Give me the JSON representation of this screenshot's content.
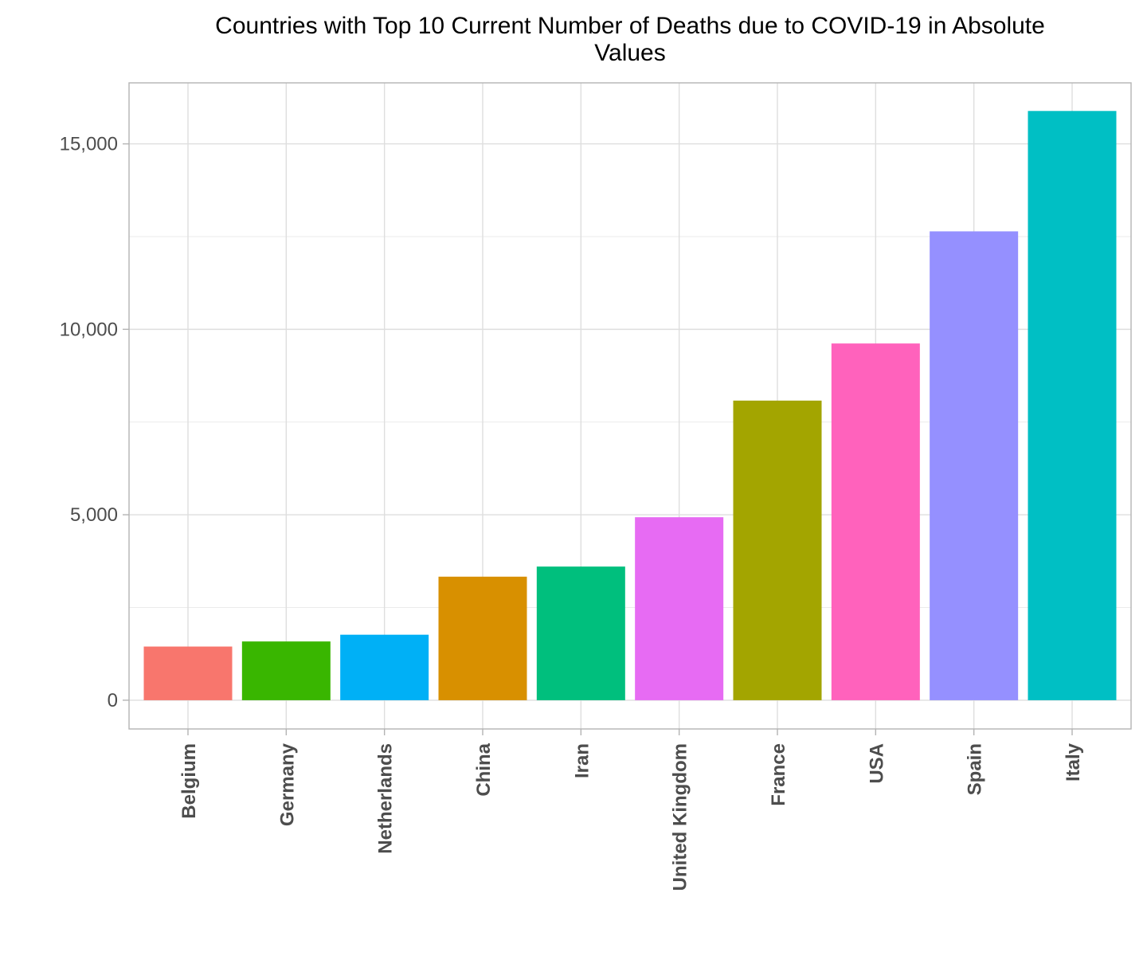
{
  "chart_data": {
    "type": "bar",
    "title_lines": [
      "Countries with Top 10 Current Number of Deaths due to COVID-19 in Absolute",
      "Values"
    ],
    "xlabel": "",
    "ylabel": "",
    "categories": [
      "Belgium",
      "Germany",
      "Netherlands",
      "China",
      "Iran",
      "United Kingdom",
      "France",
      "USA",
      "Spain",
      "Italy"
    ],
    "values": [
      1447,
      1584,
      1766,
      3331,
      3603,
      4934,
      8078,
      9618,
      12641,
      15887
    ],
    "colors": [
      "#F8766D",
      "#39B600",
      "#00B0F6",
      "#D89000",
      "#00BF7D",
      "#E76BF3",
      "#A3A500",
      "#FF62BC",
      "#9590FF",
      "#00BFC4"
    ],
    "ylim": [
      -775,
      16645
    ],
    "yticks": [
      0,
      5000,
      10000,
      15000
    ],
    "ytick_labels": [
      "0",
      "5,000",
      "10,000",
      "15,000"
    ],
    "y_minor_gridlines": [
      2500,
      7500,
      12500
    ],
    "grid": true,
    "legend": "none"
  }
}
